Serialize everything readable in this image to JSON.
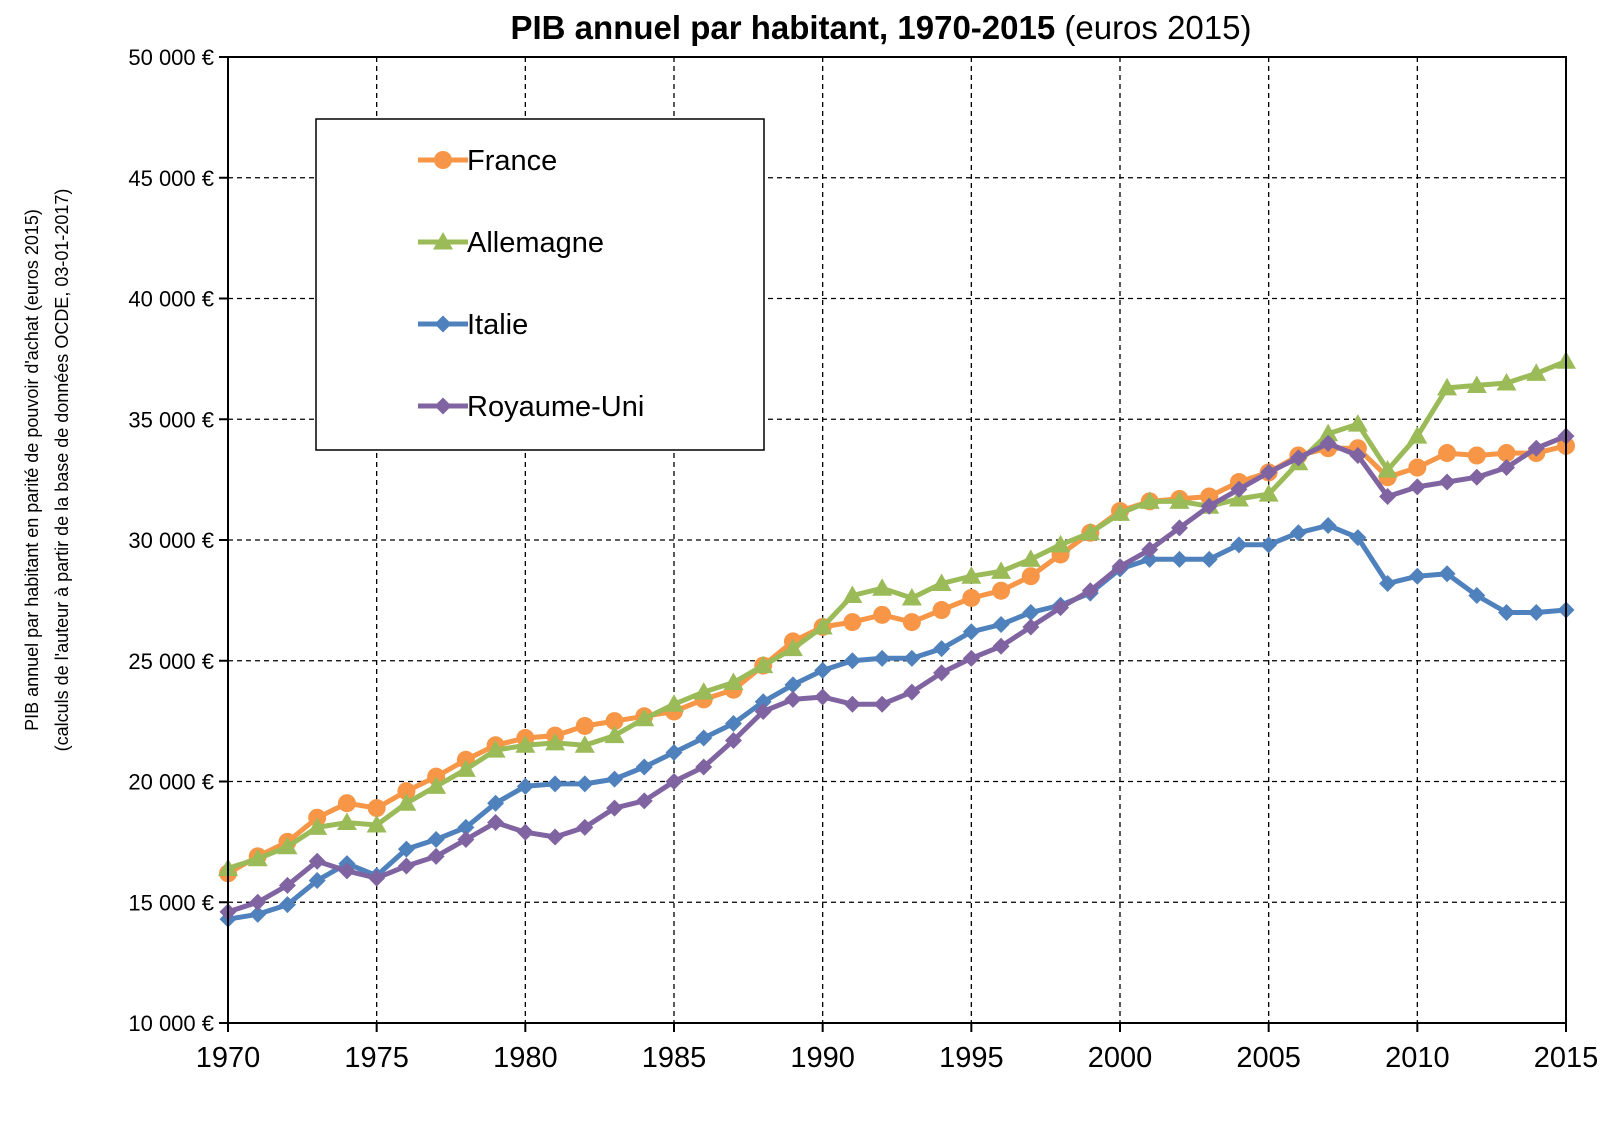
{
  "chart_data": {
    "type": "line",
    "title_bold": "PIB annuel par habitant, 1970-2015",
    "title_normal": " (euros 2015)",
    "ylabel_line1": "PIB annuel par habitant en parité de pouvoir d'achat (euros 2015)",
    "ylabel_line2": "(calculs de l'auteur à partir de la base de données OCDE, 03-01-2017)",
    "xlim": [
      1970,
      2015
    ],
    "ylim": [
      10000,
      50000
    ],
    "x_ticks": [
      "1970",
      "1975",
      "1980",
      "1985",
      "1990",
      "1995",
      "2000",
      "2005",
      "2010",
      "2015"
    ],
    "x_tick_values": [
      1970,
      1975,
      1980,
      1985,
      1990,
      1995,
      2000,
      2005,
      2010,
      2015
    ],
    "y_ticks": [
      "10 000 €",
      "15 000 €",
      "20 000 €",
      "25 000 €",
      "30 000 €",
      "35 000 €",
      "40 000 €",
      "45 000 €",
      "50 000 €"
    ],
    "y_tick_values": [
      10000,
      15000,
      20000,
      25000,
      30000,
      35000,
      40000,
      45000,
      50000
    ],
    "grid": true,
    "legend_position": "top-left",
    "x": [
      1970,
      1971,
      1972,
      1973,
      1974,
      1975,
      1976,
      1977,
      1978,
      1979,
      1980,
      1981,
      1982,
      1983,
      1984,
      1985,
      1986,
      1987,
      1988,
      1989,
      1990,
      1991,
      1992,
      1993,
      1994,
      1995,
      1996,
      1997,
      1998,
      1999,
      2000,
      2001,
      2002,
      2003,
      2004,
      2005,
      2006,
      2007,
      2008,
      2009,
      2010,
      2011,
      2012,
      2013,
      2014,
      2015
    ],
    "series": [
      {
        "name": "France",
        "color": "#F79646",
        "marker": "circle",
        "values": [
          16200,
          16900,
          17500,
          18500,
          19100,
          18900,
          19600,
          20200,
          20900,
          21500,
          21800,
          21900,
          22300,
          22500,
          22700,
          22900,
          23400,
          23800,
          24800,
          25800,
          26400,
          26600,
          26900,
          26600,
          27100,
          27600,
          27900,
          28500,
          29400,
          30300,
          31200,
          31600,
          31700,
          31800,
          32400,
          32800,
          33500,
          33800,
          33800,
          32600,
          33000,
          33600,
          33500,
          33600,
          33600,
          33900
        ]
      },
      {
        "name": "Allemagne",
        "color": "#9BBB59",
        "marker": "triangle",
        "values": [
          16400,
          16800,
          17300,
          18100,
          18300,
          18200,
          19100,
          19800,
          20500,
          21300,
          21500,
          21600,
          21500,
          21900,
          22600,
          23200,
          23700,
          24100,
          24800,
          25500,
          26400,
          27700,
          28000,
          27600,
          28200,
          28500,
          28700,
          29200,
          29800,
          30300,
          31100,
          31600,
          31600,
          31400,
          31700,
          31900,
          33200,
          34400,
          34800,
          32900,
          34300,
          36300,
          36400,
          36500,
          36900,
          37400
        ]
      },
      {
        "name": "Italie",
        "color": "#4F81BD",
        "marker": "diamond",
        "values": [
          14300,
          14500,
          14900,
          15900,
          16600,
          16100,
          17200,
          17600,
          18100,
          19100,
          19800,
          19900,
          19900,
          20100,
          20600,
          21200,
          21800,
          22400,
          23300,
          24000,
          24600,
          25000,
          25100,
          25100,
          25500,
          26200,
          26500,
          27000,
          27300,
          27800,
          28800,
          29200,
          29200,
          29200,
          29800,
          29800,
          30300,
          30600,
          30100,
          28200,
          28500,
          28600,
          27700,
          27000,
          27000,
          27100
        ]
      },
      {
        "name": "Royaume-Uni",
        "color": "#8064A2",
        "marker": "diamond",
        "values": [
          14600,
          15000,
          15700,
          16700,
          16300,
          16000,
          16500,
          16900,
          17600,
          18300,
          17900,
          17700,
          18100,
          18900,
          19200,
          20000,
          20600,
          21700,
          22900,
          23400,
          23500,
          23200,
          23200,
          23700,
          24500,
          25100,
          25600,
          26400,
          27200,
          27900,
          28900,
          29600,
          30500,
          31400,
          32100,
          32800,
          33400,
          34000,
          33500,
          31800,
          32200,
          32400,
          32600,
          33000,
          33800,
          34300
        ]
      }
    ]
  }
}
